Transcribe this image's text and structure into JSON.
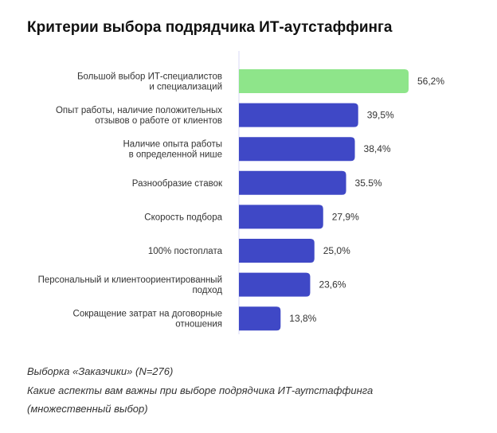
{
  "chart_data": {
    "type": "bar",
    "orientation": "horizontal",
    "title": "Критерии выбора подрядчика ИТ-аутстаффинга",
    "categories": [
      "Большой выбор ИТ-специалистов\nи специализаций",
      "Опыт работы, наличие положительных\nотзывов о работе от клиентов",
      "Наличие опыта работы\nв определенной нише",
      "Разнообразие ставок",
      "Скорость подбора",
      "100% постоплата",
      "Персональный и клиентоориентированный\nподход",
      "Сокращение затрат на договорные\nотношения"
    ],
    "values": [
      56.2,
      39.5,
      38.4,
      35.5,
      27.9,
      25.0,
      23.6,
      13.8
    ],
    "value_labels": [
      "56,2%",
      "39,5%",
      "38,4%",
      "35.5%",
      "27,9%",
      "25,0%",
      "23,6%",
      "13,8%"
    ],
    "xlim": [
      0,
      60
    ],
    "grid": false,
    "legend": "none",
    "colors": {
      "highlight": "#8EE58A",
      "default": "#3F48C6",
      "axis": "#D8DAF5"
    }
  },
  "footer": {
    "sample": "Выборка «Заказчики» (N=276)",
    "question": "Какие аспекты вам важны при выборе подрядчика ИТ-аутстаффинга",
    "note": "(множественный выбор)"
  }
}
